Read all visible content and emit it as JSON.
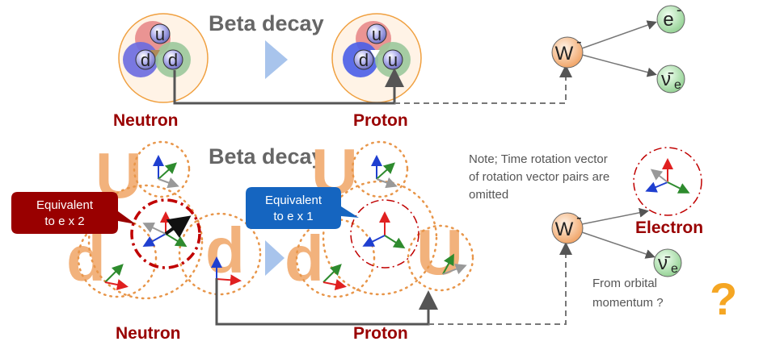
{
  "top": {
    "title": "Beta decay",
    "neutron_label": "Neutron",
    "proton_label": "Proton",
    "neutron_quarks": [
      "u",
      "d",
      "d"
    ],
    "proton_quarks": [
      "u",
      "d",
      "u"
    ],
    "w_boson": "W",
    "w_charge": "-",
    "electron": "e",
    "electron_charge": "-",
    "antineutrino": "ν̄",
    "antineutrino_sub": "e"
  },
  "bottom": {
    "title": "Beta decay",
    "neutron_label": "Neutron",
    "proton_label": "Proton",
    "neutron_letters": [
      "U",
      "d",
      "d"
    ],
    "proton_letters": [
      "U",
      "d",
      "U"
    ],
    "callout_red": [
      "Equivalent",
      "to e x 2"
    ],
    "callout_blue": [
      "Equivalent",
      "to e x 1"
    ],
    "note": [
      "Note; Time rotation vector",
      "of rotation vector pairs are",
      "omitted"
    ],
    "w_boson": "W",
    "w_charge": "-",
    "electron_label": "Electron",
    "antineutrino": "ν̄",
    "antineutrino_sub": "e",
    "orbital_note": [
      "From orbital",
      "momentum ?"
    ],
    "question_mark": "?"
  },
  "colors": {
    "dark_red": "#990000",
    "title_gray": "#666666",
    "orange_text": "#f2b27c",
    "question": "#f5a623",
    "callout_red": "#990000",
    "callout_blue": "#1565c0",
    "arrow_gray": "#555555"
  }
}
